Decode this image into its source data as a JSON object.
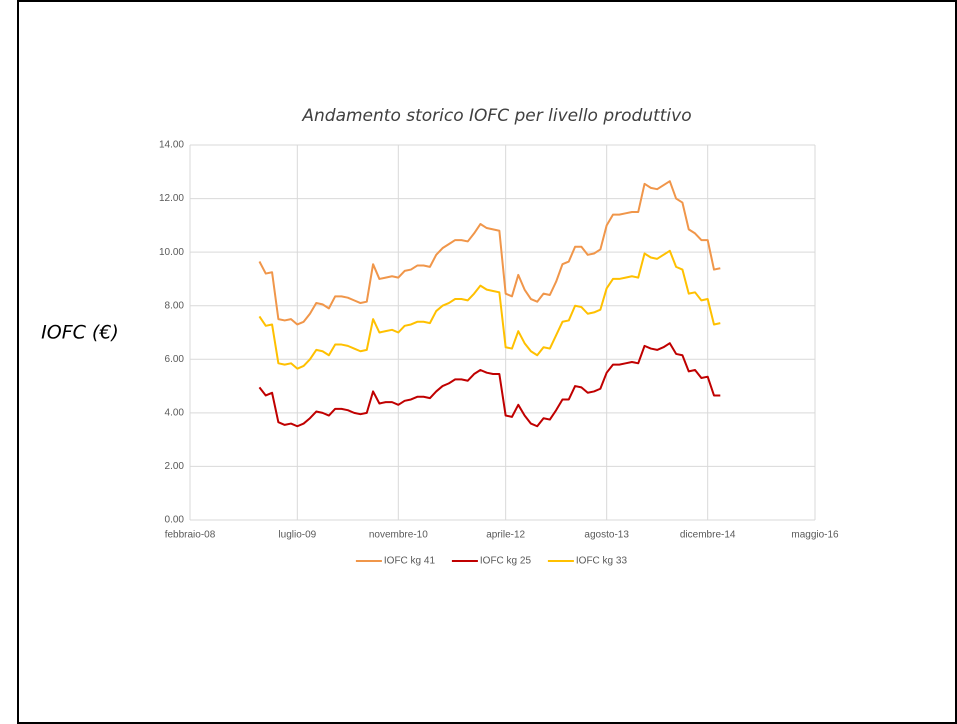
{
  "chart_data": {
    "type": "line",
    "title": "Andamento storico IOFC per livello produttivo",
    "y_label": "IOFC (€)",
    "x": [
      "2009-01",
      "2009-02",
      "2009-03",
      "2009-04",
      "2009-05",
      "2009-06",
      "2009-07",
      "2009-08",
      "2009-09",
      "2009-10",
      "2009-11",
      "2009-12",
      "2010-01",
      "2010-02",
      "2010-03",
      "2010-04",
      "2010-05",
      "2010-06",
      "2010-07",
      "2010-08",
      "2010-09",
      "2010-10",
      "2010-11",
      "2010-12",
      "2011-01",
      "2011-02",
      "2011-03",
      "2011-04",
      "2011-05",
      "2011-06",
      "2011-07",
      "2011-08",
      "2011-09",
      "2011-10",
      "2011-11",
      "2011-12",
      "2012-01",
      "2012-02",
      "2012-03",
      "2012-04",
      "2012-05",
      "2012-06",
      "2012-07",
      "2012-08",
      "2012-09",
      "2012-10",
      "2012-11",
      "2012-12",
      "2013-01",
      "2013-02",
      "2013-03",
      "2013-04",
      "2013-05",
      "2013-06",
      "2013-07",
      "2013-08",
      "2013-09",
      "2013-10",
      "2013-11",
      "2013-12",
      "2014-01",
      "2014-02",
      "2014-03",
      "2014-04",
      "2014-05",
      "2014-06",
      "2014-07",
      "2014-08",
      "2014-09",
      "2014-10",
      "2014-11",
      "2014-12",
      "2015-01",
      "2015-02"
    ],
    "series": [
      {
        "name": "IOFC kg 41",
        "color": "#f0964a",
        "values": [
          9.65,
          9.2,
          9.25,
          7.5,
          7.45,
          7.5,
          7.3,
          7.4,
          7.7,
          8.1,
          8.05,
          7.9,
          8.35,
          8.35,
          8.3,
          8.2,
          8.1,
          8.15,
          9.55,
          9.0,
          9.05,
          9.1,
          9.05,
          9.3,
          9.35,
          9.5,
          9.5,
          9.45,
          9.9,
          10.15,
          10.3,
          10.45,
          10.45,
          10.4,
          10.7,
          11.05,
          10.9,
          10.85,
          10.8,
          8.45,
          8.35,
          9.15,
          8.6,
          8.25,
          8.15,
          8.45,
          8.4,
          8.9,
          9.55,
          9.65,
          10.2,
          10.2,
          9.9,
          9.95,
          10.1,
          11.0,
          11.4,
          11.4,
          11.45,
          11.5,
          11.5,
          12.55,
          12.4,
          12.35,
          12.5,
          12.65,
          12.0,
          11.85,
          10.85,
          10.7,
          10.45,
          10.45,
          9.35,
          9.4
        ]
      },
      {
        "name": "IOFC kg 25",
        "color": "#c00000",
        "values": [
          4.95,
          4.65,
          4.75,
          3.65,
          3.55,
          3.6,
          3.5,
          3.6,
          3.8,
          4.05,
          4.0,
          3.9,
          4.15,
          4.15,
          4.1,
          4.0,
          3.95,
          4.0,
          4.8,
          4.35,
          4.4,
          4.4,
          4.3,
          4.45,
          4.5,
          4.6,
          4.6,
          4.55,
          4.8,
          5.0,
          5.1,
          5.25,
          5.25,
          5.2,
          5.45,
          5.6,
          5.5,
          5.45,
          5.45,
          3.9,
          3.85,
          4.3,
          3.9,
          3.6,
          3.5,
          3.8,
          3.75,
          4.1,
          4.5,
          4.5,
          5.0,
          4.95,
          4.75,
          4.8,
          4.9,
          5.5,
          5.8,
          5.8,
          5.85,
          5.9,
          5.85,
          6.5,
          6.4,
          6.35,
          6.45,
          6.6,
          6.2,
          6.15,
          5.55,
          5.6,
          5.3,
          5.35,
          4.65,
          4.65
        ]
      },
      {
        "name": "IOFC kg  33",
        "color": "#ffc000",
        "values": [
          7.6,
          7.25,
          7.3,
          5.85,
          5.8,
          5.85,
          5.65,
          5.75,
          6.0,
          6.35,
          6.3,
          6.15,
          6.55,
          6.55,
          6.5,
          6.4,
          6.3,
          6.35,
          7.5,
          7.0,
          7.05,
          7.1,
          7.0,
          7.25,
          7.3,
          7.4,
          7.4,
          7.35,
          7.8,
          8.0,
          8.1,
          8.25,
          8.25,
          8.2,
          8.45,
          8.75,
          8.6,
          8.55,
          8.5,
          6.45,
          6.4,
          7.05,
          6.6,
          6.3,
          6.15,
          6.45,
          6.4,
          6.9,
          7.4,
          7.45,
          8.0,
          7.95,
          7.7,
          7.75,
          7.85,
          8.65,
          9.0,
          9.0,
          9.05,
          9.1,
          9.05,
          9.95,
          9.8,
          9.75,
          9.9,
          10.05,
          9.45,
          9.35,
          8.45,
          8.5,
          8.2,
          8.25,
          7.3,
          7.35
        ]
      }
    ],
    "xlim": [
      "2008-02",
      "2016-05"
    ],
    "xticks": [
      {
        "value": "2008-02",
        "label": "febbraio-08"
      },
      {
        "value": "2009-07",
        "label": "luglio-09"
      },
      {
        "value": "2010-11",
        "label": "novembre-10"
      },
      {
        "value": "2012-04",
        "label": "aprile-12"
      },
      {
        "value": "2013-08",
        "label": "agosto-13"
      },
      {
        "value": "2014-12",
        "label": "dicembre-14"
      },
      {
        "value": "2016-05",
        "label": "maggio-16"
      }
    ],
    "ylim": [
      0,
      14
    ],
    "yticks": [
      {
        "value": 0,
        "label": "0.00"
      },
      {
        "value": 2,
        "label": "2.00"
      },
      {
        "value": 4,
        "label": "4.00"
      },
      {
        "value": 6,
        "label": "6.00"
      },
      {
        "value": 8,
        "label": "8.00"
      },
      {
        "value": 10,
        "label": "10.00"
      },
      {
        "value": 12,
        "label": "12.00"
      },
      {
        "value": 14,
        "label": "14.00"
      }
    ],
    "grid": true,
    "legend": "bottom"
  }
}
